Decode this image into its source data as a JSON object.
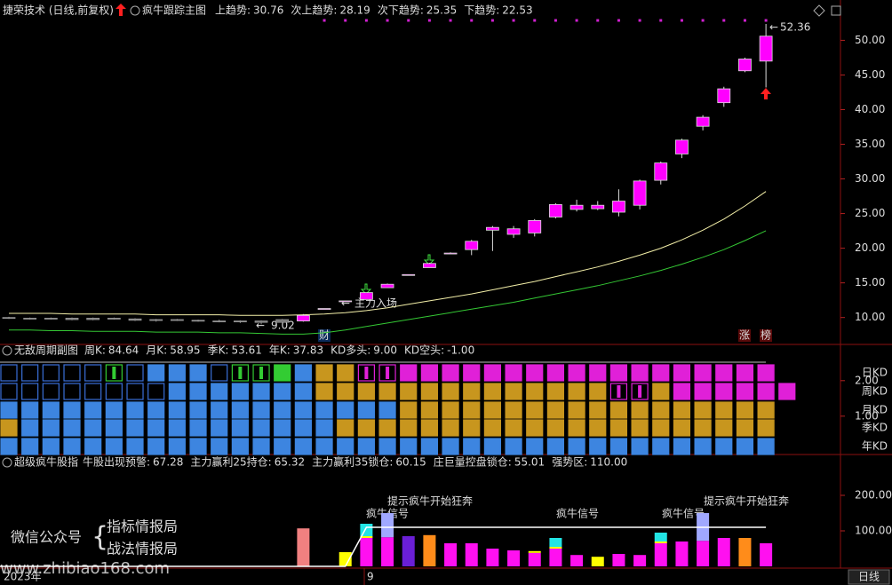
{
  "chart_data": [
    {
      "type": "candlestick",
      "header": "捷荣技术 (日线,前复权)",
      "title": "疯牛跟踪主图",
      "indicators": [
        {
          "label": "上趋势:",
          "value": 30.76,
          "color": "#ff8c1a"
        },
        {
          "label": "次上趋势:",
          "value": 28.19,
          "color": "#ffff40"
        },
        {
          "label": "次下趋势:",
          "value": 25.35,
          "color": "#ffffff"
        },
        {
          "label": "下趋势:",
          "value": 22.53,
          "color": "#40ff40"
        }
      ],
      "open": [
        10.0,
        9.9,
        9.8,
        9.9,
        9.7,
        9.9,
        9.8,
        9.6,
        9.7,
        9.6,
        9.5,
        9.4,
        9.5,
        9.3,
        9.5,
        11.2,
        12.3,
        12.6,
        14.3,
        16.1,
        17.2,
        19.2,
        19.8,
        22.6,
        22.0,
        22.2,
        24.5,
        25.6,
        25.7,
        25.2,
        26.2,
        29.8,
        33.6,
        37.6,
        41.0,
        45.6,
        47.0
      ],
      "high": [
        10.1,
        10.0,
        10.0,
        10.0,
        10.0,
        10.0,
        9.9,
        9.8,
        9.8,
        9.7,
        9.7,
        9.6,
        9.6,
        9.8,
        10.5,
        11.3,
        12.4,
        13.6,
        14.9,
        16.2,
        17.9,
        19.4,
        21.2,
        23.2,
        23.2,
        24.2,
        26.5,
        27.0,
        26.8,
        28.5,
        29.9,
        32.5,
        35.8,
        39.2,
        43.3,
        47.5,
        52.36
      ],
      "low": [
        9.8,
        9.7,
        9.7,
        9.6,
        9.6,
        9.7,
        9.5,
        9.4,
        9.5,
        9.4,
        9.3,
        9.2,
        9.02,
        9.2,
        9.4,
        11.2,
        12.3,
        12.6,
        14.3,
        16.1,
        17.2,
        19.2,
        19.0,
        19.6,
        21.5,
        21.7,
        24.3,
        25.3,
        25.5,
        24.6,
        25.6,
        29.2,
        33.0,
        37.0,
        40.4,
        45.4,
        43.2
      ],
      "close": [
        9.9,
        9.8,
        9.9,
        9.7,
        9.9,
        9.8,
        9.6,
        9.7,
        9.6,
        9.5,
        9.4,
        9.5,
        9.3,
        9.7,
        10.3,
        11.3,
        12.4,
        13.6,
        14.8,
        16.2,
        17.8,
        19.3,
        21.0,
        23.0,
        22.8,
        24.0,
        26.3,
        26.2,
        26.2,
        26.8,
        29.7,
        32.3,
        35.6,
        38.9,
        43.0,
        47.3,
        50.6
      ],
      "up_color": "#ff00ff",
      "down_color": "#000000",
      "lines": [
        {
          "color": "#f3efa8",
          "values": [
            10.6,
            10.6,
            10.6,
            10.5,
            10.5,
            10.5,
            10.5,
            10.4,
            10.4,
            10.4,
            10.4,
            10.3,
            10.3,
            10.3,
            10.4,
            10.5,
            10.7,
            11.0,
            11.4,
            11.9,
            12.4,
            12.9,
            13.4,
            14.0,
            14.6,
            15.2,
            15.9,
            16.6,
            17.3,
            18.1,
            19.0,
            20.0,
            21.2,
            22.6,
            24.2,
            26.1,
            28.19
          ]
        },
        {
          "color": "#34c834",
          "values": [
            8.2,
            8.2,
            8.1,
            8.1,
            8.0,
            8.0,
            8.0,
            7.9,
            7.9,
            7.9,
            7.8,
            7.8,
            7.7,
            7.6,
            7.6,
            7.8,
            8.2,
            8.7,
            9.2,
            9.7,
            10.2,
            10.7,
            11.2,
            11.7,
            12.2,
            12.8,
            13.4,
            14.0,
            14.6,
            15.3,
            16.0,
            16.8,
            17.7,
            18.7,
            19.8,
            21.1,
            22.53
          ]
        }
      ],
      "ylim": [
        6.5,
        53
      ],
      "yticks": [
        {
          "value": 10,
          "label": "10.00"
        },
        {
          "value": 15,
          "label": "15.00"
        },
        {
          "value": 20,
          "label": "20.00"
        },
        {
          "value": 25,
          "label": "25.00"
        },
        {
          "value": 30,
          "label": "30.00"
        },
        {
          "value": 35,
          "label": "35.00"
        },
        {
          "value": 40,
          "label": "40.00"
        },
        {
          "value": 45,
          "label": "45.00"
        },
        {
          "value": 50,
          "label": "50.00"
        }
      ],
      "annotations": [
        "主力入场",
        "财",
        "涨",
        "榜"
      ]
    },
    {
      "type": "grid",
      "title": "无敌周期副图",
      "indicators": [
        {
          "label": "周K:",
          "value": 84.64,
          "color": "#ff4040"
        },
        {
          "label": "月K:",
          "value": 58.95,
          "color": "#ff6a6a"
        },
        {
          "label": "季K:",
          "value": 53.61,
          "color": "#ff55cc"
        },
        {
          "label": "年K:",
          "value": 37.83,
          "color": "#ff4040"
        },
        {
          "label": "KD多头:",
          "value": 9,
          "value_label": "9.00",
          "color": "#b070ff"
        },
        {
          "label": "KD空头:",
          "value": -1,
          "value_label": "-1.00",
          "color": "#40ff40"
        }
      ],
      "rows": [
        {
          "name": "日KD",
          "color": "#ff3030",
          "states": "hhhhhGhbbbhGGgbooppmmmmmmmmmmmmmmmmmm"
        },
        {
          "name": "周KD",
          "color": "#40e040",
          "states": "hhhhhhhhbbbbbbbooooooooooooooppommmmmm"
        },
        {
          "name": "月KD",
          "color": "#b050ff",
          "states": "bbbbbbbbbbbbbbbbbbboooooooooooooooooo"
        },
        {
          "name": "季KD",
          "color": "#e0a020",
          "states": "obbbbbbbbbbbbbbbooooooooooooooooooooo"
        },
        {
          "name": "年KD",
          "color": "#ff3030",
          "states": "bbbbbbbbbbbbbbbbbbbbbbbbbbbbbbbbbbbbb"
        }
      ],
      "state_colors": {
        "h": {
          "fill": "#000000",
          "stroke": "#3a6fd8"
        },
        "b": {
          "fill": "#3d85e0",
          "stroke": "#3d85e0"
        },
        "o": {
          "fill": "#c8961e",
          "stroke": "#c8961e"
        },
        "m": {
          "fill": "#e020d8",
          "stroke": "#e020d8"
        },
        "g": {
          "fill": "#33cc33",
          "stroke": "#33cc33"
        },
        "G": {
          "fill": "#000000",
          "stroke": "#33cc33"
        },
        "p": {
          "fill": "#000000",
          "stroke": "#e020d8"
        }
      },
      "ylim": [
        -0.08,
        2.62
      ],
      "yticks": [
        {
          "value": 1,
          "label": "1.00"
        },
        {
          "value": 2,
          "label": "2.00"
        }
      ]
    },
    {
      "type": "stacked_bar",
      "title": "超级疯牛股指",
      "indicators": [
        {
          "label": "牛股出现预警:",
          "value": 67.28,
          "color": "#ffffff"
        },
        {
          "label": "主力赢利25持仓:",
          "value": 65.32,
          "color": "#ff40ff"
        },
        {
          "label": "主力赢利35锁仓:",
          "value": 60.15,
          "color": "#ff40ff"
        },
        {
          "label": "庄巨量控盘锁仓:",
          "value": 55.01,
          "color": "#8a5cff"
        },
        {
          "label": "强势区:",
          "value": 110,
          "value_label": "110.00",
          "color": "#ffffff"
        }
      ],
      "series": [
        {
          "color": "#f08080",
          "values": [
            null,
            null,
            null,
            null,
            null,
            null,
            null,
            null,
            null,
            null,
            null,
            null,
            null,
            null,
            107,
            null,
            null,
            null,
            null,
            null,
            null,
            null,
            null,
            null,
            null,
            null,
            null,
            null,
            null,
            null,
            null,
            null,
            null,
            null,
            null,
            null,
            null
          ]
        },
        {
          "color": "#6a1fd6",
          "values": [
            null,
            null,
            null,
            null,
            null,
            null,
            null,
            null,
            null,
            null,
            null,
            null,
            null,
            null,
            null,
            null,
            null,
            null,
            null,
            85,
            null,
            null,
            null,
            null,
            null,
            null,
            null,
            null,
            null,
            null,
            null,
            null,
            null,
            null,
            null,
            null,
            null
          ]
        },
        {
          "color": "#ff8c1a",
          "values": [
            null,
            null,
            null,
            null,
            null,
            null,
            null,
            null,
            null,
            null,
            null,
            null,
            null,
            null,
            null,
            null,
            null,
            null,
            null,
            null,
            88,
            null,
            null,
            null,
            null,
            null,
            null,
            null,
            null,
            null,
            null,
            null,
            null,
            null,
            null,
            80,
            null
          ]
        },
        {
          "color": "#ff10f0",
          "values": [
            null,
            null,
            null,
            null,
            null,
            null,
            null,
            null,
            null,
            null,
            null,
            null,
            null,
            null,
            null,
            null,
            null,
            80,
            82,
            null,
            null,
            65,
            65,
            50,
            45,
            38,
            50,
            32,
            null,
            35,
            32,
            65,
            70,
            72,
            80,
            null,
            65
          ]
        },
        {
          "color": "#ffff00",
          "values": [
            null,
            null,
            null,
            null,
            null,
            null,
            null,
            null,
            null,
            null,
            null,
            null,
            null,
            null,
            null,
            null,
            40,
            5,
            null,
            null,
            null,
            null,
            null,
            null,
            null,
            5,
            5,
            null,
            27,
            null,
            null,
            5,
            null,
            null,
            null,
            null,
            null
          ]
        },
        {
          "color": "#22e5e5",
          "values": [
            null,
            null,
            null,
            null,
            null,
            null,
            null,
            null,
            null,
            null,
            null,
            null,
            null,
            null,
            null,
            null,
            null,
            35,
            null,
            null,
            null,
            null,
            null,
            null,
            null,
            null,
            25,
            null,
            null,
            null,
            null,
            25,
            null,
            null,
            null,
            null,
            null
          ]
        },
        {
          "color": "#a0a8ff",
          "values": [
            null,
            null,
            null,
            null,
            null,
            null,
            null,
            null,
            null,
            null,
            null,
            null,
            null,
            null,
            null,
            null,
            null,
            null,
            68,
            null,
            null,
            null,
            null,
            null,
            null,
            null,
            null,
            null,
            null,
            null,
            null,
            null,
            null,
            78,
            null,
            null,
            null
          ]
        }
      ],
      "line": {
        "color": "#ffffff",
        "values": [
          0,
          0,
          0,
          0,
          0,
          0,
          0,
          0,
          0,
          0,
          0,
          0,
          0,
          0,
          0,
          0,
          0,
          110,
          110,
          110,
          110,
          110,
          110,
          110,
          110,
          110,
          110,
          110,
          110,
          110,
          110,
          110,
          110,
          110,
          110,
          110,
          110
        ]
      },
      "ylim": [
        0,
        275
      ],
      "yticks": [
        {
          "value": 100,
          "label": "100.00"
        },
        {
          "value": 200,
          "label": "200.00"
        }
      ],
      "annotations": [
        "提示疯牛开始狂奔",
        "疯牛信号",
        "疯牛信号",
        "疯牛信号",
        "提示疯牛开始狂奔"
      ]
    }
  ],
  "overlay": {
    "wechat": "微信公众号",
    "lines": [
      "指标情报局",
      "战法情报局"
    ],
    "url": "www.zhibiao168.com"
  },
  "time_axis": {
    "year": "2023年",
    "month": "9",
    "period": "日线"
  }
}
